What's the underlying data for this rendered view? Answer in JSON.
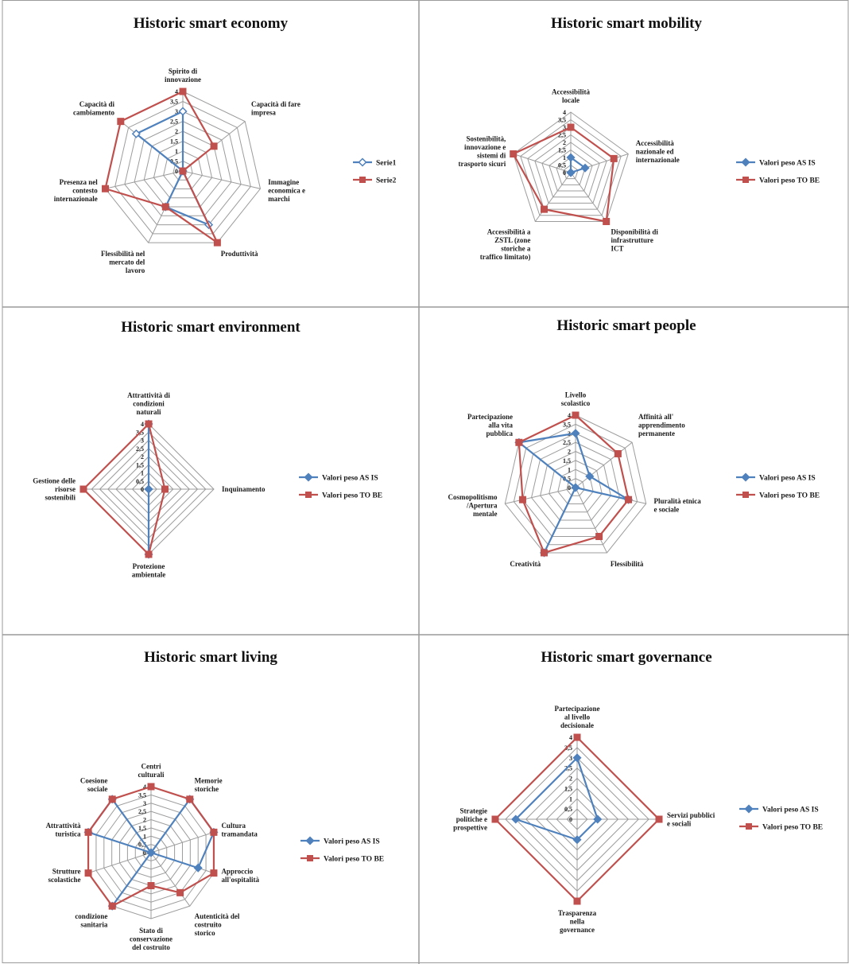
{
  "chart_data": [
    {
      "type": "radar",
      "title": "Historic smart economy",
      "rlim": [
        0,
        4
      ],
      "ticks": [
        "0",
        "0,5",
        "1",
        "1,5",
        "2",
        "2,5",
        "3",
        "3,5",
        "4"
      ],
      "categories": [
        "Spirito di innovazione",
        "Capacità di fare impresa",
        "Immagine economica e marchi",
        "Produttività",
        "Flessibilità nel mercato del lavoro",
        "Presenza nel contesto internazionale",
        "Capacità di cambiamento"
      ],
      "series": [
        {
          "name": "Serie1",
          "color": "#4f81bd",
          "marker": "diamond-open",
          "values": [
            3,
            0,
            0,
            3,
            2,
            0,
            3
          ]
        },
        {
          "name": "Serie2",
          "color": "#c0504d",
          "marker": "square",
          "values": [
            4,
            2,
            0,
            4,
            2,
            4,
            4
          ]
        }
      ]
    },
    {
      "type": "radar",
      "title": "Historic smart mobility",
      "rlim": [
        0,
        4
      ],
      "ticks": [
        "0",
        "0,5",
        "1",
        "1,5",
        "2",
        "2,5",
        "3",
        "3,5",
        "4"
      ],
      "categories": [
        "Accessibilità locale",
        "Accessibilità nazionale ed internazionale",
        "Disponibilità di infrastrutture ICT",
        "Accessibilità a ZSTL (zone storiche a traffico limitato)",
        "Sostenibilità, innovazione e sistemi di trasporto sicuri"
      ],
      "series": [
        {
          "name": "Valori peso AS IS",
          "color": "#4f81bd",
          "marker": "diamond",
          "values": [
            1,
            1,
            0,
            0,
            0
          ]
        },
        {
          "name": "Valori peso TO BE",
          "color": "#c0504d",
          "marker": "square",
          "values": [
            3,
            3,
            4,
            3,
            4
          ]
        }
      ]
    },
    {
      "type": "radar",
      "title": "Historic smart environment",
      "rlim": [
        0,
        4
      ],
      "ticks": [
        "0",
        "0,5",
        "1",
        "1,5",
        "2",
        "2,5",
        "3",
        "3,5",
        "4"
      ],
      "categories": [
        "Attrattività di condizioni naturali",
        "Inquinamento",
        "Protezione ambientale",
        "Gestione delle risorse sostenibili"
      ],
      "series": [
        {
          "name": "Valori peso AS IS",
          "color": "#4f81bd",
          "marker": "diamond",
          "values": [
            4,
            0,
            4,
            0
          ]
        },
        {
          "name": "Valori peso TO BE",
          "color": "#c0504d",
          "marker": "square",
          "values": [
            4,
            1,
            4,
            4
          ]
        }
      ]
    },
    {
      "type": "radar",
      "title": "Historic smart people",
      "rlim": [
        0,
        4
      ],
      "ticks": [
        "0",
        "0,5",
        "1",
        "1,5",
        "2",
        "2,5",
        "3",
        "3,5",
        "4"
      ],
      "categories": [
        "Livello scolastico",
        "Affinità all' apprendimento permanente",
        "Pluralità etnica e sociale",
        "Flessibilità",
        "Creatività",
        "Cosmopolitismo /Apertura mentale",
        "Partecipazione alla vita pubblica"
      ],
      "series": [
        {
          "name": "Valori peso AS IS",
          "color": "#4f81bd",
          "marker": "diamond",
          "values": [
            3,
            1,
            3,
            0,
            4,
            0,
            4
          ]
        },
        {
          "name": "Valori peso TO BE",
          "color": "#c0504d",
          "marker": "square",
          "values": [
            4,
            3,
            3,
            3,
            4,
            3,
            4
          ]
        }
      ]
    },
    {
      "type": "radar",
      "title": "Historic smart living",
      "rlim": [
        0,
        4
      ],
      "ticks": [
        "0",
        "0,5",
        "1",
        "1,5",
        "2",
        "2,5",
        "3",
        "3,5",
        "4"
      ],
      "categories": [
        "Centri culturali",
        "Memorie storiche",
        "Cultura tramandata",
        "Approccio all'ospitalità",
        "Autenticità del costruito storico",
        "Stato di conservazione del costruito",
        "condizione sanitaria",
        "Strutture scolastiche",
        "Attrattività turistica",
        "Coesione sociale"
      ],
      "series": [
        {
          "name": "Valori peso AS IS",
          "color": "#4f81bd",
          "marker": "diamond",
          "values": [
            0,
            4,
            4,
            3,
            0,
            0,
            4,
            0,
            4,
            4
          ]
        },
        {
          "name": "Valori peso TO BE",
          "color": "#c0504d",
          "marker": "square",
          "values": [
            4,
            4,
            4,
            4,
            3,
            2,
            4,
            4,
            4,
            4
          ]
        }
      ]
    },
    {
      "type": "radar",
      "title": "Historic smart governance",
      "rlim": [
        0,
        4
      ],
      "ticks": [
        "0",
        "0,5",
        "1",
        "1,5",
        "2",
        "2,5",
        "3",
        "3,5",
        "4"
      ],
      "categories": [
        "Partecipazione al livello decisionale",
        "Servizi pubblici e sociali",
        "Trasparenza nella governance",
        "Strategie politiche e prospettive"
      ],
      "series": [
        {
          "name": "Valori peso AS IS",
          "color": "#4f81bd",
          "marker": "diamond",
          "values": [
            3,
            1,
            1,
            3
          ]
        },
        {
          "name": "Valori peso TO BE",
          "color": "#c0504d",
          "marker": "square",
          "values": [
            4,
            4,
            4,
            4
          ]
        }
      ]
    }
  ]
}
